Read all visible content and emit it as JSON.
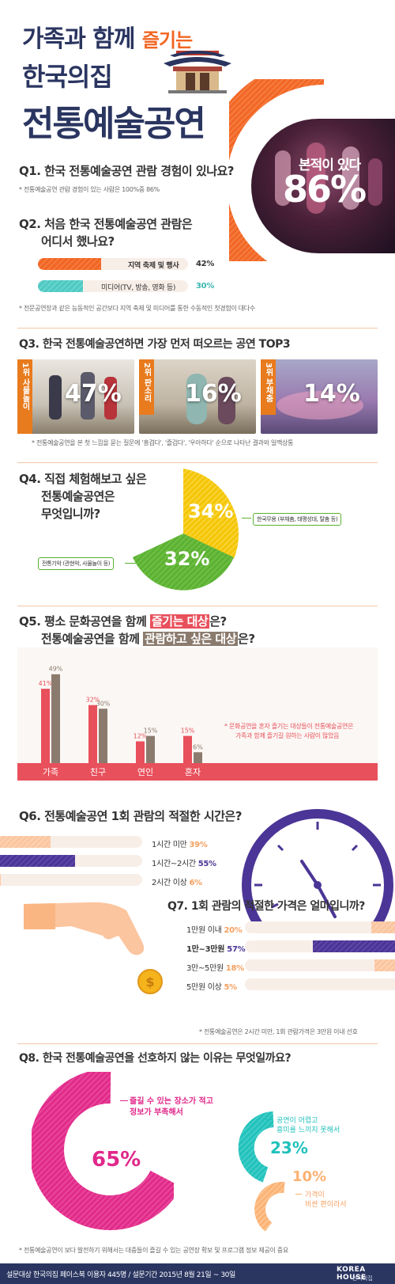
{
  "header": {
    "line1a": "가족과 함께",
    "line1b": "즐기는",
    "line2": "한국의집",
    "line3": "전통예술공연"
  },
  "q1": {
    "question": "Q1. 한국 전통예술공연 관람 경험이 있나요?",
    "note": "* 전통예술공연 관람 경험이 있는 사람은 100%중 86%",
    "big_label": "본적이 있다",
    "big_value": "86%",
    "value": 86
  },
  "q2": {
    "question_line1": "Q2. 처음 한국 전통예술공연 관람은",
    "question_line2": "어디서 했나요?",
    "items": [
      {
        "label": "지역 축제 및 행사",
        "pct": "42%",
        "value": 42
      },
      {
        "label": "미디어(TV, 방송, 영화 등)",
        "pct": "30%",
        "value": 30
      }
    ],
    "note": "* 전문공연장과 같은 능동적인 공간보다 지역 축제 및 미디어를 통한 수동적인 첫경험이 대다수"
  },
  "q3": {
    "question": "Q3. 한국 전통예술공연하면 가장 먼저 떠오르는 공연 TOP3",
    "items": [
      {
        "rank": "1위 사물놀이",
        "pct": "47%"
      },
      {
        "rank": "2위 판소리",
        "pct": "16%"
      },
      {
        "rank": "3위 부채춤",
        "pct": "14%"
      }
    ],
    "note": "* 전통예술공연을 본 첫 느낌을 묻는 질문에 '흥겹다', '즐겁다', '우아하다' 순으로 나타난 결과와 일맥상통"
  },
  "q4": {
    "question_line1": "Q4. 직접 체험해보고 싶은",
    "question_line2": "전통예술공연은",
    "question_line3": "무엇입니까?",
    "slices": [
      {
        "pct": "34%",
        "value": 34,
        "label": "한국무용 (부채춤, 태평성대, 탈춤 등)",
        "color": "#f5c400"
      },
      {
        "pct": "32%",
        "value": 32,
        "label": "전통기악 (관현악, 사물놀이 등)",
        "color": "#5ab031"
      }
    ]
  },
  "q5": {
    "question_line1_a": "Q5. 평소 문화공연을 함께 ",
    "question_line1_hl": "즐기는 대상",
    "question_line1_b": "은?",
    "question_line2_a": "전통예술공연을 함께 ",
    "question_line2_hl": "관람하고 싶은 대상",
    "question_line2_b": "은?",
    "note_line1": "* 문화공연을 혼자 즐기는 대상들이 전통예술공연은",
    "note_line2": "가족과 함께 즐기길 원하는 사람이 많았음"
  },
  "chart_data": {
    "type": "bar",
    "categories": [
      "가족",
      "친구",
      "연인",
      "혼자"
    ],
    "series": [
      {
        "values": [
          41,
          32,
          12,
          15
        ],
        "labels": [
          "41%",
          "32%",
          "12%",
          "15%"
        ]
      },
      {
        "values": [
          49,
          30,
          15,
          6
        ],
        "labels": [
          "49%",
          "30%",
          "15%",
          "6%"
        ]
      }
    ],
    "colors": [
      "#e8505b",
      "#8b7b6e"
    ],
    "ylim": [
      0,
      55
    ]
  },
  "q6": {
    "question": "Q6. 전통예술공연 1회 관람의 적절한 시간은?",
    "items": [
      {
        "label": "1시간 미만",
        "pct": "39%",
        "value": 39
      },
      {
        "label": "1시간~2시간",
        "pct": "55%",
        "value": 55
      },
      {
        "label": "2시간 이상",
        "pct": "6%",
        "value": 6
      }
    ]
  },
  "q7": {
    "question": "Q7. 1회 관람의 적절한 가격은 얼마입니까?",
    "items": [
      {
        "label": "1만원 이내",
        "pct": "20%",
        "value": 20
      },
      {
        "label": "1만~3만원",
        "pct": "57%",
        "value": 57
      },
      {
        "label": "3만~5만원",
        "pct": "18%",
        "value": 18
      },
      {
        "label": "5만원 이상",
        "pct": "5%",
        "value": 5
      }
    ],
    "note": "* 전통예술공연은 2시간 미만, 1회 관람가격은 3만원 이내 선호"
  },
  "q8": {
    "question": "Q8. 한국 전통예술공연을 선호하지 않는 이유는 무엇일까요?",
    "items": [
      {
        "pct": "65%",
        "value": 65,
        "label_line1": "즐길 수 있는 장소가 적고",
        "label_line2": "정보가 부족해서",
        "color": "#e0288a"
      },
      {
        "pct": "23%",
        "value": 23,
        "label_line1": "공연이 어렵고",
        "label_line2": "흥미를 느끼지 못해서",
        "color": "#1fc1bb"
      },
      {
        "pct": "10%",
        "value": 10,
        "label_line1": "가격이",
        "label_line2": "비싼 편이라서",
        "color": "#fbb272"
      }
    ],
    "note": "* 전통예술공연이 보다 발전하기 위해서는 대중들이 즐길 수 있는 공연장 확보 및 프로그램 정보 제공이 중요"
  },
  "footer": {
    "text": "설문대상 한국의집 페이스북 이용자 445명  /  설문기간 2015년 8월 21일 ~ 30일",
    "logo": "KOREA HOUSE",
    "logo_sub": "한국의집"
  }
}
